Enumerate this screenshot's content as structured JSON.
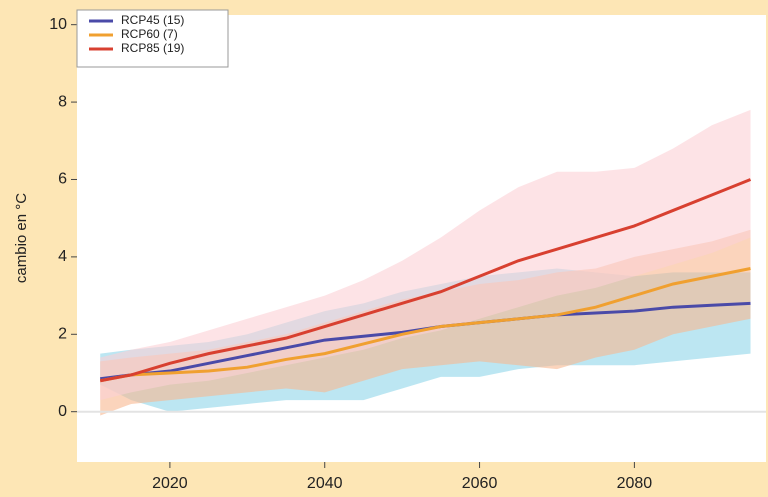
{
  "chart_data": {
    "type": "line",
    "ylabel": "cambio en °C",
    "x": [
      2011,
      2015,
      2020,
      2025,
      2030,
      2035,
      2040,
      2045,
      2050,
      2055,
      2060,
      2065,
      2070,
      2075,
      2080,
      2085,
      2090,
      2095
    ],
    "xlim": [
      2008,
      2097
    ],
    "xticks": [
      2020,
      2040,
      2060,
      2080
    ],
    "ylim": [
      -1.3,
      10.25
    ],
    "yticks": [
      0,
      2,
      4,
      6,
      8,
      10
    ],
    "series": [
      {
        "name": "RCP45 (15)",
        "color": "#4a4aa8",
        "band_color": "#8fd6ea",
        "values": [
          0.85,
          0.95,
          1.05,
          1.25,
          1.45,
          1.65,
          1.85,
          1.95,
          2.05,
          2.2,
          2.3,
          2.4,
          2.5,
          2.55,
          2.6,
          2.7,
          2.75,
          2.8
        ],
        "band_low": [
          0.7,
          0.3,
          0,
          0.1,
          0.2,
          0.3,
          0.3,
          0.3,
          0.6,
          0.9,
          0.9,
          1.1,
          1.2,
          1.2,
          1.2,
          1.3,
          1.4,
          1.5
        ],
        "band_high": [
          1.5,
          1.6,
          1.7,
          1.8,
          2.0,
          2.3,
          2.6,
          2.8,
          3.1,
          3.3,
          3.5,
          3.6,
          3.7,
          3.6,
          3.5,
          3.6,
          3.6,
          3.6
        ]
      },
      {
        "name": "RCP60 (7)",
        "color": "#f0a030",
        "band_color": "#f8b890",
        "values": [
          0.8,
          0.95,
          1.0,
          1.05,
          1.15,
          1.35,
          1.5,
          1.75,
          2.0,
          2.2,
          2.3,
          2.4,
          2.5,
          2.7,
          3.0,
          3.3,
          3.5,
          3.7
        ],
        "band_low": [
          -0.1,
          0.2,
          0.3,
          0.4,
          0.5,
          0.6,
          0.5,
          0.8,
          1.1,
          1.2,
          1.3,
          1.2,
          1.1,
          1.4,
          1.6,
          2.0,
          2.2,
          2.4
        ],
        "band_high": [
          1.3,
          1.4,
          1.5,
          1.6,
          1.8,
          2.0,
          2.3,
          2.6,
          2.9,
          3.1,
          3.3,
          3.4,
          3.6,
          3.7,
          4.0,
          4.2,
          4.4,
          4.7
        ]
      },
      {
        "name": "RCP85 (19)",
        "color": "#d84030",
        "band_color": "#fbd0d6",
        "values": [
          0.8,
          0.95,
          1.25,
          1.5,
          1.7,
          1.9,
          2.2,
          2.5,
          2.8,
          3.1,
          3.5,
          3.9,
          4.2,
          4.5,
          4.8,
          5.2,
          5.6,
          6.0
        ],
        "band_low": [
          0.3,
          0.5,
          0.7,
          0.8,
          1.0,
          1.2,
          1.4,
          1.6,
          1.9,
          2.1,
          2.4,
          2.7,
          3.0,
          3.2,
          3.5,
          3.8,
          4.1,
          4.5
        ],
        "band_high": [
          1.4,
          1.6,
          1.8,
          2.1,
          2.4,
          2.7,
          3.0,
          3.4,
          3.9,
          4.5,
          5.2,
          5.8,
          6.2,
          6.2,
          6.3,
          6.8,
          7.4,
          7.8
        ]
      }
    ]
  }
}
